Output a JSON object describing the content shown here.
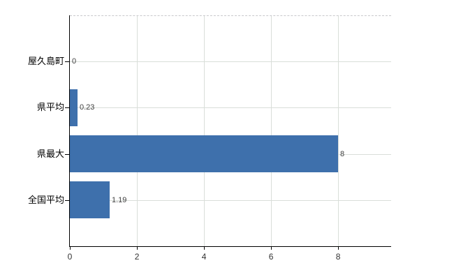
{
  "chart_data": {
    "type": "bar",
    "orientation": "horizontal",
    "title": "",
    "xlabel": "",
    "ylabel": "",
    "categories": [
      "屋久島町",
      "県平均",
      "県最大",
      "全国平均"
    ],
    "values": [
      0,
      0.23,
      8,
      1.19
    ],
    "value_labels": [
      "0",
      "0.23",
      "8",
      "1.19"
    ],
    "x_ticks": [
      0,
      2,
      4,
      6,
      8
    ],
    "x_tick_labels": [
      "0",
      "2",
      "4",
      "6",
      "8"
    ],
    "xlim": [
      0,
      9.58
    ],
    "grid": true,
    "legend": false,
    "colors": {
      "bar": "#3e70ac",
      "axis": "#000000",
      "gridline": "#d9ded9",
      "top_border": "#c8c8cc",
      "tick_label": "#333333",
      "category_label": "#000000",
      "value_label": "#404040",
      "background": "#ffffff"
    }
  }
}
